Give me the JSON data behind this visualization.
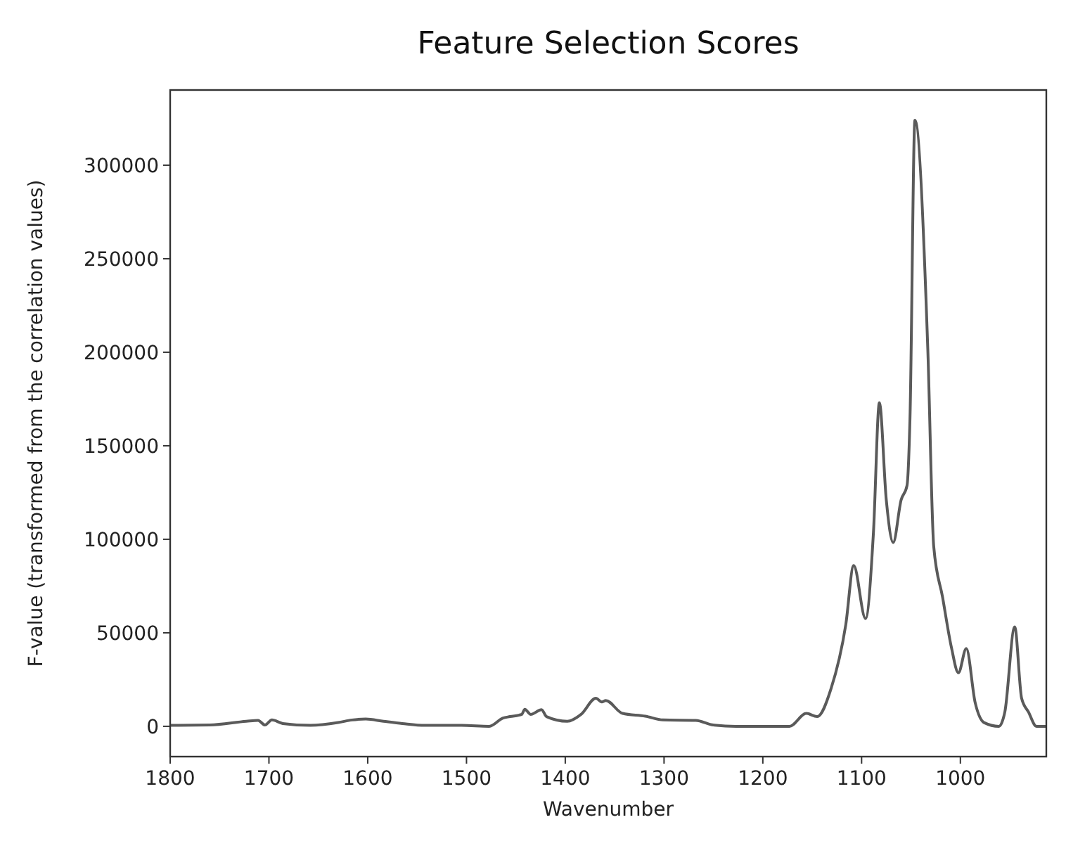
{
  "chart_data": {
    "type": "line",
    "title": "Feature Selection Scores",
    "xlabel": "Wavenumber",
    "ylabel": "F-value (transformed from the correlation values)",
    "xlim": [
      1800,
      913
    ],
    "ylim": [
      -16200,
      340200
    ],
    "xticks": [
      1800,
      1700,
      1600,
      1500,
      1400,
      1300,
      1200,
      1100,
      1000
    ],
    "yticks": [
      0,
      50000,
      100000,
      150000,
      200000,
      250000,
      300000
    ],
    "grid": false,
    "marker": "none",
    "line_style": "solid",
    "series": [
      {
        "color": "#5a5a5a",
        "x": [
          1800,
          1760,
          1723,
          1711,
          1704,
          1697,
          1686,
          1658,
          1630,
          1616,
          1602,
          1584,
          1565,
          1542,
          1505,
          1477,
          1463,
          1456,
          1444,
          1441,
          1435,
          1424,
          1419,
          1398,
          1384,
          1369,
          1363,
          1359,
          1342,
          1319,
          1301,
          1268,
          1250,
          1227,
          1191,
          1173,
          1156,
          1145,
          1131,
          1116,
          1108,
          1096,
          1088,
          1082,
          1075,
          1068,
          1060,
          1054,
          1051,
          1046,
          1033,
          1027,
          1018,
          1009,
          1002,
          994,
          985,
          976,
          961,
          955,
          945,
          938,
          931,
          923,
          913
        ],
        "values": [
          500,
          700,
          2700,
          3200,
          700,
          3400,
          1500,
          500,
          2000,
          3400,
          3900,
          2700,
          1500,
          500,
          500,
          0,
          4400,
          5200,
          6400,
          9100,
          6400,
          8900,
          5200,
          2700,
          6400,
          15000,
          13000,
          13800,
          6900,
          5400,
          3400,
          3200,
          700,
          0,
          0,
          0,
          6900,
          5200,
          20000,
          54400,
          86000,
          57600,
          103700,
          173000,
          121000,
          98300,
          121000,
          128800,
          165000,
          324000,
          202000,
          96300,
          69000,
          42000,
          28600,
          41600,
          12600,
          2000,
          0,
          7600,
          53200,
          15000,
          7600,
          0,
          0
        ]
      }
    ]
  }
}
